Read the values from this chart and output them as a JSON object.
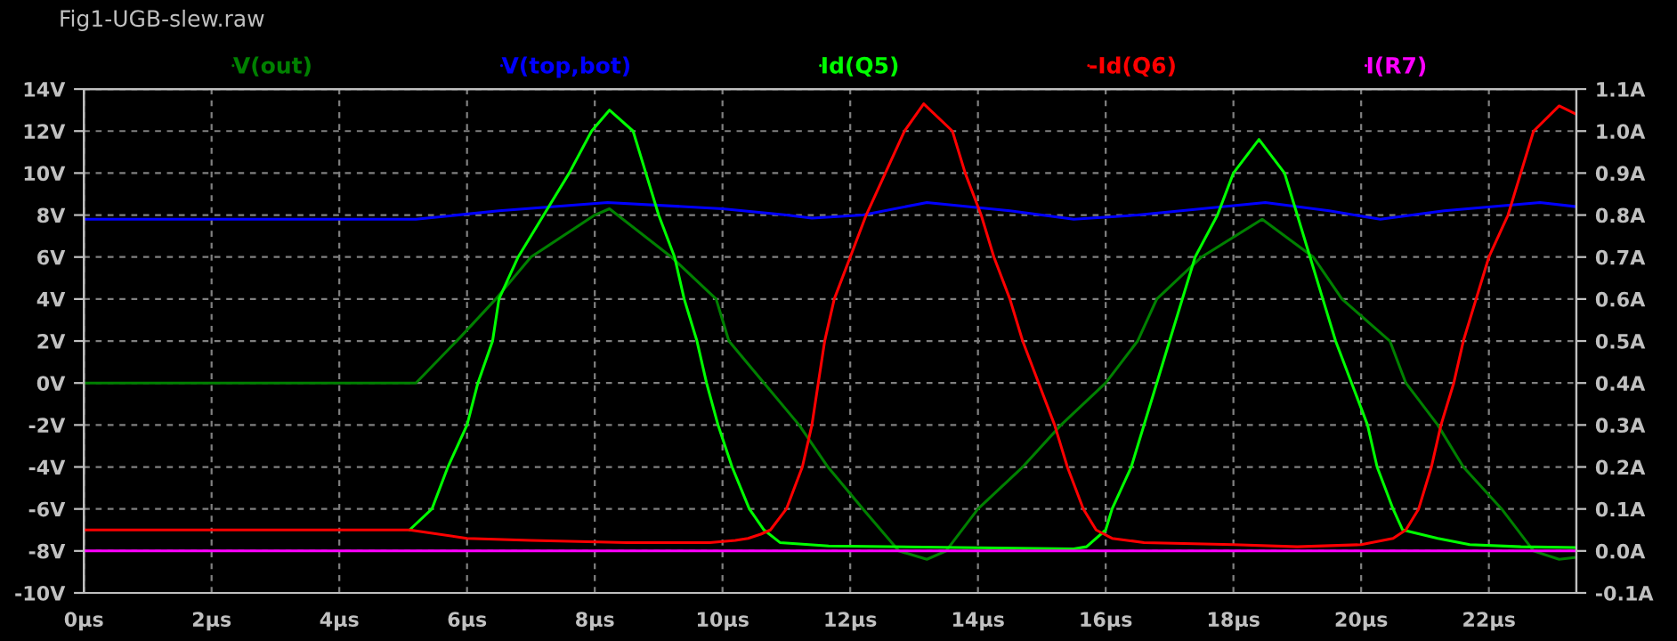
{
  "chart_data": {
    "type": "line",
    "title": "Fig1-UGB-slew.raw",
    "xlim": [
      0,
      23.37
    ],
    "xticks": [
      {
        "value": 0,
        "label": "0µs"
      },
      {
        "value": 2,
        "label": "2µs"
      },
      {
        "value": 4,
        "label": "4µs"
      },
      {
        "value": 6,
        "label": "6µs"
      },
      {
        "value": 8,
        "label": "8µs"
      },
      {
        "value": 10,
        "label": "10µs"
      },
      {
        "value": 12,
        "label": "12µs"
      },
      {
        "value": 14,
        "label": "14µs"
      },
      {
        "value": 16,
        "label": "16µs"
      },
      {
        "value": 18,
        "label": "18µs"
      },
      {
        "value": 20,
        "label": "20µs"
      },
      {
        "value": 22,
        "label": "22µs"
      }
    ],
    "ylim": [
      -10,
      14
    ],
    "yticks": [
      {
        "value": -10,
        "label": "-10V"
      },
      {
        "value": -8,
        "label": "-8V"
      },
      {
        "value": -6,
        "label": "-6V"
      },
      {
        "value": -4,
        "label": "-4V"
      },
      {
        "value": -2,
        "label": "-2V"
      },
      {
        "value": 0,
        "label": "0V"
      },
      {
        "value": 2,
        "label": "2V"
      },
      {
        "value": 4,
        "label": "4V"
      },
      {
        "value": 6,
        "label": "6V"
      },
      {
        "value": 8,
        "label": "8V"
      },
      {
        "value": 10,
        "label": "10V"
      },
      {
        "value": 12,
        "label": "12V"
      },
      {
        "value": 14,
        "label": "14V"
      }
    ],
    "y2lim": [
      -0.1,
      1.1
    ],
    "y2ticks": [
      {
        "value": -0.1,
        "label": "-0.1A"
      },
      {
        "value": 0.0,
        "label": "0.0A"
      },
      {
        "value": 0.1,
        "label": "0.1A"
      },
      {
        "value": 0.2,
        "label": "0.2A"
      },
      {
        "value": 0.3,
        "label": "0.3A"
      },
      {
        "value": 0.4,
        "label": "0.4A"
      },
      {
        "value": 0.5,
        "label": "0.5A"
      },
      {
        "value": 0.6,
        "label": "0.6A"
      },
      {
        "value": 0.7,
        "label": "0.7A"
      },
      {
        "value": 0.8,
        "label": "0.8A"
      },
      {
        "value": 0.9,
        "label": "0.9A"
      },
      {
        "value": 1.0,
        "label": "1.0A"
      },
      {
        "value": 1.1,
        "label": "1.1A"
      }
    ],
    "grid": true,
    "legend": "top",
    "marker": "none",
    "line_style": "solid",
    "series": [
      {
        "name": "V(out)",
        "color": "#008000",
        "x": [
          0,
          5.2,
          5.9,
          6.45,
          7.0,
          8.0,
          8.23,
          9.2,
          9.9,
          10.1,
          10.65,
          11.2,
          11.65,
          12.2,
          12.76,
          13.2,
          13.5,
          14.0,
          14.7,
          15.3,
          16.0,
          16.5,
          16.8,
          17.5,
          18.45,
          19.25,
          19.7,
          20.45,
          20.7,
          21.2,
          21.6,
          22.2,
          22.7,
          23.1,
          23.37
        ],
        "values": [
          0,
          0,
          2.2,
          4,
          6,
          8,
          8.3,
          6,
          4,
          2,
          0,
          -2,
          -4,
          -6,
          -8,
          -8.4,
          -8,
          -6,
          -4,
          -2,
          0,
          2,
          4,
          6,
          7.8,
          6,
          4,
          2,
          0,
          -2,
          -4,
          -6,
          -8,
          -8.4,
          -8.3
        ]
      },
      {
        "name": "V(top,bot)",
        "color": "#0000ff",
        "x": [
          0,
          5.2,
          6.5,
          8.2,
          10,
          11,
          11.4,
          12.2,
          13.2,
          14.5,
          15.5,
          16.5,
          18.5,
          19.5,
          20.3,
          21.3,
          22.8,
          23.37
        ],
        "values": [
          7.8,
          7.8,
          8.2,
          8.6,
          8.3,
          8.0,
          7.85,
          8.0,
          8.6,
          8.2,
          7.8,
          8.0,
          8.6,
          8.2,
          7.8,
          8.2,
          8.6,
          8.4
        ]
      },
      {
        "name": "Id(Q5)",
        "color": "#00ff00",
        "axis": "y2",
        "x": [
          5.1,
          5.45,
          5.7,
          6.0,
          6.17,
          6.4,
          6.5,
          6.8,
          7.2,
          7.6,
          7.95,
          8.23,
          8.6,
          8.8,
          9.0,
          9.25,
          9.4,
          9.6,
          9.75,
          9.93,
          10.15,
          10.42,
          10.65,
          10.9,
          11.66,
          15.5,
          15.7,
          16.0,
          16.1,
          16.4,
          16.6,
          16.8,
          17.0,
          17.2,
          17.4,
          17.75,
          18.0,
          18.4,
          18.8,
          19.0,
          19.2,
          19.4,
          19.6,
          19.85,
          20.1,
          20.25,
          20.5,
          20.65,
          21.2,
          21.7,
          22.5,
          23.37
        ],
        "values": [
          0.05,
          0.1,
          0.2,
          0.3,
          0.4,
          0.5,
          0.6,
          0.7,
          0.8,
          0.9,
          1.0,
          1.05,
          1.0,
          0.9,
          0.8,
          0.7,
          0.6,
          0.5,
          0.4,
          0.3,
          0.2,
          0.1,
          0.05,
          0.02,
          0.012,
          0.005,
          0.01,
          0.05,
          0.1,
          0.2,
          0.3,
          0.4,
          0.5,
          0.6,
          0.7,
          0.8,
          0.9,
          0.98,
          0.9,
          0.8,
          0.7,
          0.6,
          0.5,
          0.4,
          0.3,
          0.2,
          0.1,
          0.05,
          0.03,
          0.015,
          0.01,
          0.008
        ]
      },
      {
        "name": "-Id(Q6)",
        "color": "#ff0000",
        "axis": "y2",
        "x": [
          0,
          5.1,
          6.0,
          7.0,
          8.5,
          9.8,
          10.2,
          10.4,
          10.6,
          10.75,
          11.0,
          11.25,
          11.4,
          11.6,
          11.75,
          12.0,
          12.25,
          12.55,
          12.85,
          13.15,
          13.6,
          13.8,
          14.05,
          14.25,
          14.5,
          14.7,
          14.95,
          15.2,
          15.4,
          15.65,
          15.85,
          16.1,
          16.6,
          18.0,
          19.0,
          20.0,
          20.5,
          20.7,
          20.9,
          21.1,
          21.25,
          21.45,
          21.6,
          21.8,
          22.0,
          22.3,
          22.5,
          22.7,
          23.1,
          23.37
        ],
        "values": [
          0.05,
          0.05,
          0.03,
          0.025,
          0.02,
          0.02,
          0.025,
          0.03,
          0.04,
          0.05,
          0.1,
          0.2,
          0.3,
          0.5,
          0.6,
          0.7,
          0.8,
          0.9,
          1.0,
          1.065,
          1.0,
          0.9,
          0.8,
          0.7,
          0.6,
          0.5,
          0.4,
          0.3,
          0.2,
          0.1,
          0.05,
          0.03,
          0.02,
          0.015,
          0.01,
          0.015,
          0.03,
          0.05,
          0.1,
          0.2,
          0.3,
          0.4,
          0.5,
          0.6,
          0.7,
          0.8,
          0.9,
          1.0,
          1.06,
          1.04
        ]
      },
      {
        "name": "I(R7)",
        "color": "#ff00ff",
        "axis": "y2",
        "x": [
          0,
          23.37
        ],
        "values": [
          0.0,
          0.0
        ]
      }
    ]
  }
}
